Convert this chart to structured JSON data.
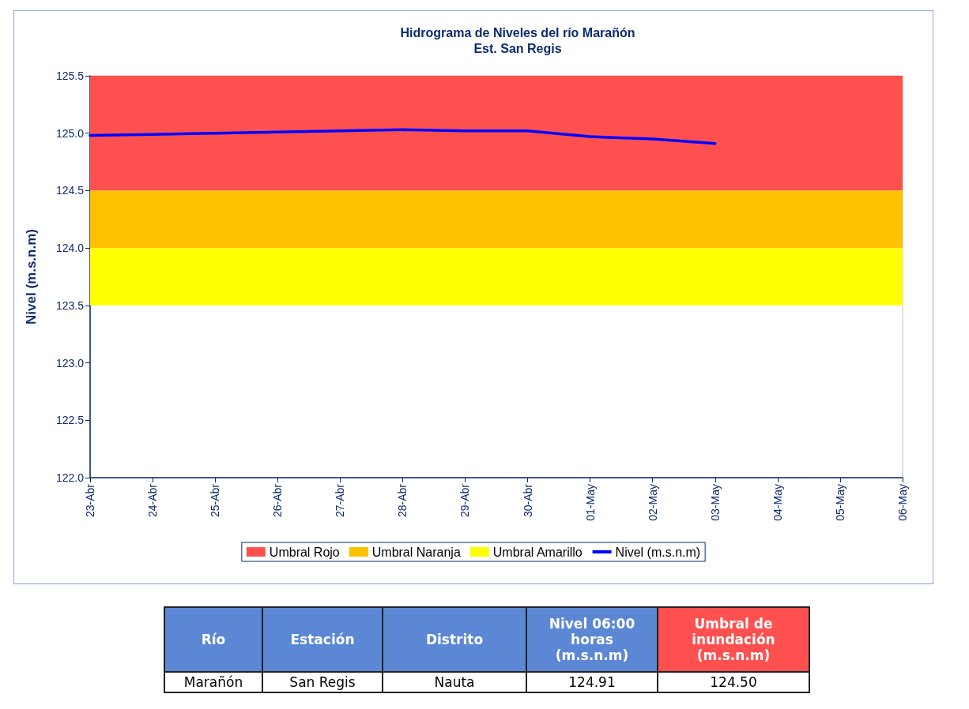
{
  "chart_data": {
    "type": "line",
    "title": "Hidrograma de Niveles del río Marañón",
    "subtitle": "Est. San Regis",
    "ylabel": "Nivel (m.s.n.m)",
    "x": [
      "--04-23",
      "--04-24",
      "--04-25",
      "--04-26",
      "--04-27",
      "--04-28",
      "--04-29",
      "--04-30",
      "--05-01",
      "--05-02",
      "--05-03"
    ],
    "series": [
      {
        "name": "Nivel (m.s.n.m)",
        "color": "#0000ff",
        "values": [
          124.98,
          124.99,
          125.0,
          125.01,
          125.02,
          125.03,
          125.02,
          125.02,
          124.97,
          124.95,
          124.91
        ]
      }
    ],
    "bands": [
      {
        "axis": "y",
        "from": 124.5,
        "to": 125.5,
        "label": "Umbral Rojo",
        "color": "#ff5050"
      },
      {
        "axis": "y",
        "from": 124.0,
        "to": 124.5,
        "label": "Umbral Naranja",
        "color": "#ffc000"
      },
      {
        "axis": "y",
        "from": 123.5,
        "to": 124.0,
        "label": "Umbral Amarillo",
        "color": "#ffff00"
      }
    ],
    "xlim": [
      "--04-23",
      "--05-06"
    ],
    "xticks": [
      {
        "value": "--04-23",
        "label": "23-Abr"
      },
      {
        "value": "--04-24",
        "label": "24-Abr"
      },
      {
        "value": "--04-25",
        "label": "25-Abr"
      },
      {
        "value": "--04-26",
        "label": "26-Abr"
      },
      {
        "value": "--04-27",
        "label": "27-Abr"
      },
      {
        "value": "--04-28",
        "label": "28-Abr"
      },
      {
        "value": "--04-29",
        "label": "29-Abr"
      },
      {
        "value": "--04-30",
        "label": "30-Abr"
      },
      {
        "value": "--05-01",
        "label": "01-May"
      },
      {
        "value": "--05-02",
        "label": "02-May"
      },
      {
        "value": "--05-03",
        "label": "03-May"
      },
      {
        "value": "--05-04",
        "label": "04-May"
      },
      {
        "value": "--05-05",
        "label": "05-May"
      },
      {
        "value": "--05-06",
        "label": "06-May"
      }
    ],
    "ylim": [
      122,
      125.5
    ],
    "yticks": [
      {
        "value": 122,
        "label": "122.0"
      },
      {
        "value": 122.5,
        "label": "122.5"
      },
      {
        "value": 123,
        "label": "123.0"
      },
      {
        "value": 123.5,
        "label": "123.5"
      },
      {
        "value": 124,
        "label": "124.0"
      },
      {
        "value": 124.5,
        "label": "124.5"
      },
      {
        "value": 125,
        "label": "125.0"
      },
      {
        "value": 125.5,
        "label": "125.5"
      }
    ],
    "grid": false,
    "legend": "bottom",
    "marker": "none",
    "line_style": "solid",
    "annotations": [
      "Río",
      "Estación",
      "Distrito",
      "Nivel 06:00 horas (m.s.n.m)",
      "Umbral de inundación (m.s.n.m)",
      "Marañón",
      "San Regis",
      "Nauta",
      "124.91",
      "124.50"
    ]
  }
}
